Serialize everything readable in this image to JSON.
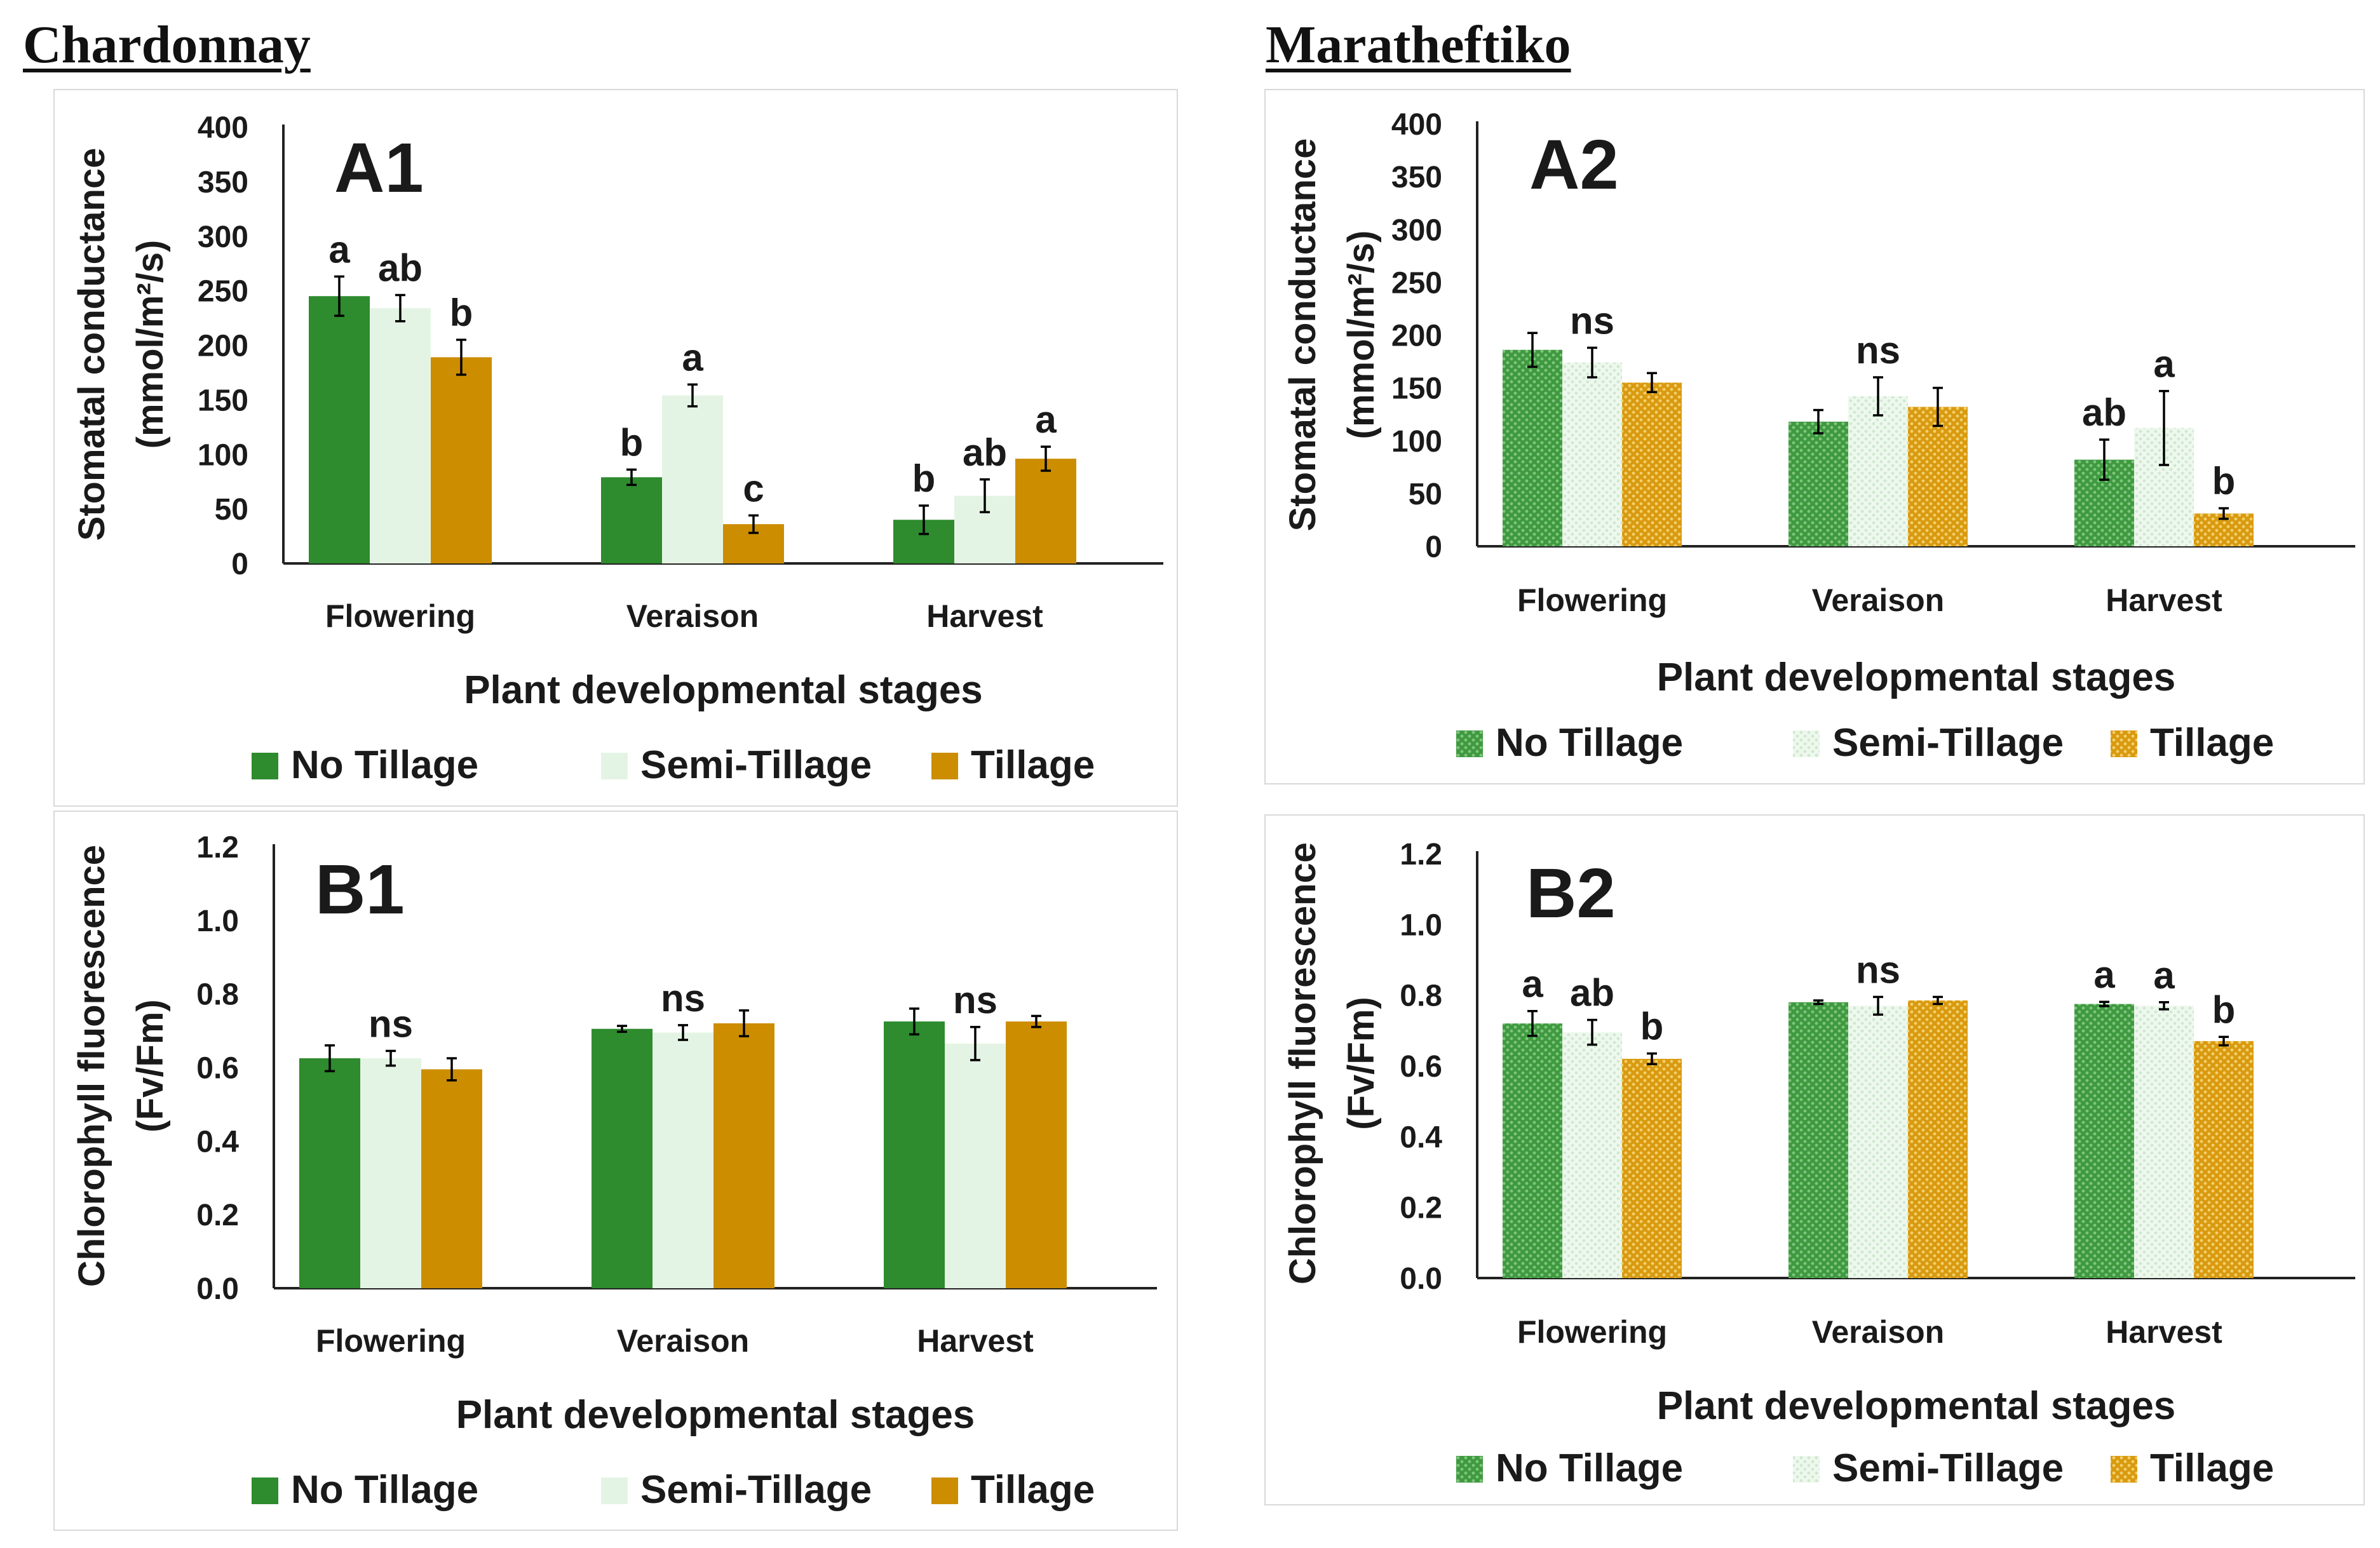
{
  "headings": {
    "left": "Chardonnay",
    "right": "Maratheftiko"
  },
  "colors": {
    "no_tillage": "#2e8b2e",
    "semi_tillage": "#e4f4e4",
    "tillage": "#cc8d00",
    "axis": "#222222",
    "text": "#1a1a1a"
  },
  "chart_data": [
    {
      "id": "A1",
      "type": "bar",
      "panel_label": "A1",
      "pattern": false,
      "categories": [
        "Flowering",
        "Veraison",
        "Harvest"
      ],
      "series": [
        {
          "name": "No Tillage",
          "values": [
            245,
            79,
            40
          ],
          "errors": [
            18,
            7,
            13
          ]
        },
        {
          "name": "Semi-Tillage",
          "values": [
            234,
            154,
            62
          ],
          "errors": [
            12,
            10,
            15
          ]
        },
        {
          "name": "Tillage",
          "values": [
            189,
            36,
            96
          ],
          "errors": [
            16,
            8,
            11
          ]
        }
      ],
      "letters": [
        [
          "a",
          "ab",
          "b"
        ],
        [
          "b",
          "a",
          "c"
        ],
        [
          "b",
          "ab",
          "a"
        ]
      ],
      "ylim": [
        0,
        400
      ],
      "yticks": [
        "0",
        "50",
        "100",
        "150",
        "200",
        "250",
        "300",
        "350",
        "400"
      ],
      "ylabel": [
        "Stomatal conductance",
        "(mmol/m²/s)"
      ],
      "xlabel": "Plant developmental stages",
      "legend": [
        "No Tillage",
        "Semi-Tillage",
        "Tillage"
      ],
      "legend_position": "bottom"
    },
    {
      "id": "A2",
      "type": "bar",
      "panel_label": "A2",
      "pattern": true,
      "categories": [
        "Flowering",
        "Veraison",
        "Harvest"
      ],
      "series": [
        {
          "name": "No Tillage",
          "values": [
            186,
            118,
            82
          ],
          "errors": [
            16,
            11,
            19
          ]
        },
        {
          "name": "Semi-Tillage",
          "values": [
            174,
            142,
            112
          ],
          "errors": [
            14,
            18,
            35
          ]
        },
        {
          "name": "Tillage",
          "values": [
            155,
            132,
            31
          ],
          "errors": [
            9,
            18,
            5
          ]
        }
      ],
      "letters": [
        [
          "",
          "ns",
          ""
        ],
        [
          "",
          "ns",
          ""
        ],
        [
          "ab",
          "a",
          "b"
        ]
      ],
      "ylim": [
        0,
        400
      ],
      "yticks": [
        "0",
        "50",
        "100",
        "150",
        "200",
        "250",
        "300",
        "350",
        "400"
      ],
      "ylabel": [
        "Stomatal conductance",
        "(mmol/m²/s)"
      ],
      "xlabel": "Plant developmental stages",
      "legend": [
        "No Tillage",
        "Semi-Tillage",
        "Tillage"
      ],
      "legend_position": "bottom"
    },
    {
      "id": "B1",
      "type": "bar",
      "panel_label": "B1",
      "pattern": false,
      "categories": [
        "Flowering",
        "Veraison",
        "Harvest"
      ],
      "series": [
        {
          "name": "No Tillage",
          "values": [
            0.625,
            0.705,
            0.725
          ],
          "errors": [
            0.035,
            0.008,
            0.035
          ]
        },
        {
          "name": "Semi-Tillage",
          "values": [
            0.625,
            0.695,
            0.665
          ],
          "errors": [
            0.02,
            0.02,
            0.045
          ]
        },
        {
          "name": "Tillage",
          "values": [
            0.595,
            0.72,
            0.725
          ],
          "errors": [
            0.03,
            0.035,
            0.015
          ]
        }
      ],
      "letters": [
        [
          "",
          "ns",
          ""
        ],
        [
          "",
          "ns",
          ""
        ],
        [
          "",
          "ns",
          ""
        ]
      ],
      "ylim": [
        0,
        1.2
      ],
      "yticks": [
        "0.0",
        "0.2",
        "0.4",
        "0.6",
        "0.8",
        "1.0",
        "1.2"
      ],
      "ylabel": [
        "Chlorophyll fluorescence",
        "(Fv/Fm)"
      ],
      "xlabel": "Plant developmental stages",
      "legend": [
        "No Tillage",
        "Semi-Tillage",
        "Tillage"
      ],
      "legend_position": "bottom"
    },
    {
      "id": "B2",
      "type": "bar",
      "panel_label": "B2",
      "pattern": true,
      "categories": [
        "Flowering",
        "Veraison",
        "Harvest"
      ],
      "series": [
        {
          "name": "No Tillage",
          "values": [
            0.72,
            0.78,
            0.775
          ],
          "errors": [
            0.035,
            0.005,
            0.006
          ]
        },
        {
          "name": "Semi-Tillage",
          "values": [
            0.695,
            0.77,
            0.77
          ],
          "errors": [
            0.035,
            0.025,
            0.01
          ]
        },
        {
          "name": "Tillage",
          "values": [
            0.62,
            0.785,
            0.67
          ],
          "errors": [
            0.015,
            0.01,
            0.012
          ]
        }
      ],
      "letters": [
        [
          "a",
          "ab",
          "b"
        ],
        [
          "",
          "ns",
          ""
        ],
        [
          "a",
          "a",
          "b"
        ]
      ],
      "ylim": [
        0,
        1.2
      ],
      "yticks": [
        "0.0",
        "0.2",
        "0.4",
        "0.6",
        "0.8",
        "1.0",
        "1.2"
      ],
      "ylabel": [
        "Chlorophyll fluorescence",
        "(Fv/Fm)"
      ],
      "xlabel": "Plant developmental stages",
      "legend": [
        "No Tillage",
        "Semi-Tillage",
        "Tillage"
      ],
      "legend_position": "bottom"
    }
  ]
}
